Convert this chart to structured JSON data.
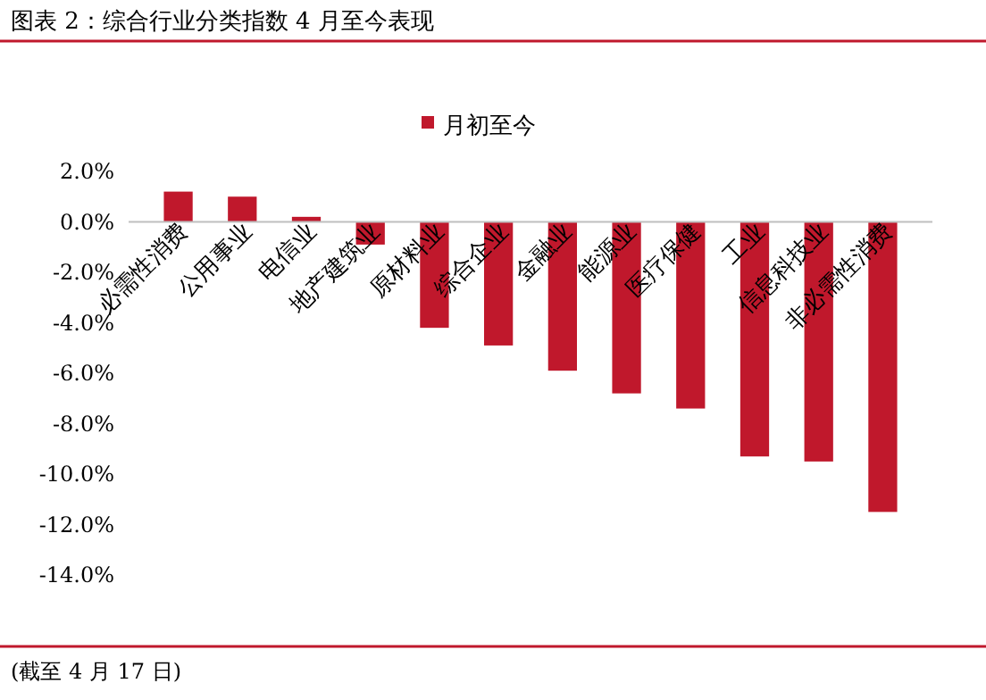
{
  "chart_data": {
    "type": "bar",
    "title": "图表 2：综合行业分类指数 4 月至今表现",
    "categories": [
      "必需性消费",
      "公用事业",
      "电信业",
      "地产建筑业",
      "原材料业",
      "综合企业",
      "金融业",
      "能源业",
      "医疗保健",
      "工业",
      "信息科技业",
      "非必需性消费"
    ],
    "series": [
      {
        "name": "月初至今",
        "color": "#c0182c",
        "values": [
          1.2,
          1.0,
          0.2,
          -0.9,
          -4.2,
          -4.9,
          -5.9,
          -6.8,
          -7.4,
          -9.3,
          -9.5,
          -11.5
        ]
      }
    ],
    "ylim": [
      -14,
      2
    ],
    "yticks": [
      {
        "value": 2,
        "label": "2.0%"
      },
      {
        "value": 0,
        "label": "0.0%"
      },
      {
        "value": -2,
        "label": "-2.0%"
      },
      {
        "value": -4,
        "label": "-4.0%"
      },
      {
        "value": -6,
        "label": "-6.0%"
      },
      {
        "value": -8,
        "label": "-8.0%"
      },
      {
        "value": -10,
        "label": "-10.0%"
      },
      {
        "value": -12,
        "label": "-12.0%"
      },
      {
        "value": -14,
        "label": "-14.0%"
      }
    ],
    "legend": "top",
    "annotations": [
      "(截至 4 月 17 日)"
    ]
  }
}
